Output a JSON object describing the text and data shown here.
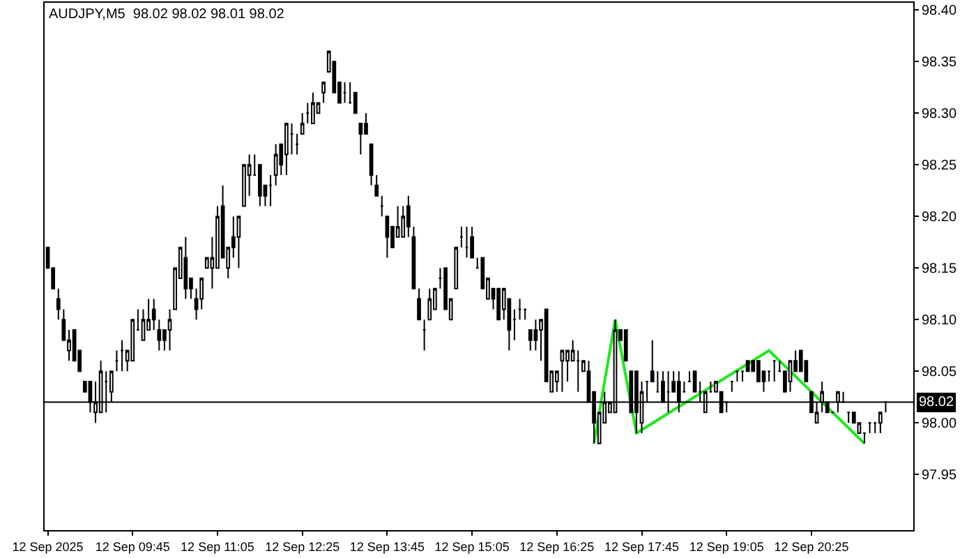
{
  "chart_data": {
    "type": "candlestick",
    "title": "AUDJPY,M5  98.02 98.02 98.01 98.02",
    "x": [
      "2025-09-12T08:25",
      "2025-09-12T08:30",
      "2025-09-12T08:35",
      "2025-09-12T08:40",
      "2025-09-12T08:45",
      "2025-09-12T08:50",
      "2025-09-12T08:55",
      "2025-09-12T09:00",
      "2025-09-12T09:05",
      "2025-09-12T09:10",
      "2025-09-12T09:15",
      "2025-09-12T09:20",
      "2025-09-12T09:25",
      "2025-09-12T09:30",
      "2025-09-12T09:35",
      "2025-09-12T09:40",
      "2025-09-12T09:45",
      "2025-09-12T09:50",
      "2025-09-12T09:55",
      "2025-09-12T10:00",
      "2025-09-12T10:05",
      "2025-09-12T10:10",
      "2025-09-12T10:15",
      "2025-09-12T10:20",
      "2025-09-12T10:25",
      "2025-09-12T10:30",
      "2025-09-12T10:35",
      "2025-09-12T10:40",
      "2025-09-12T10:45",
      "2025-09-12T10:50",
      "2025-09-12T10:55",
      "2025-09-12T11:00",
      "2025-09-12T11:05",
      "2025-09-12T11:10",
      "2025-09-12T11:15",
      "2025-09-12T11:20",
      "2025-09-12T11:25",
      "2025-09-12T11:30",
      "2025-09-12T11:35",
      "2025-09-12T11:40",
      "2025-09-12T11:45",
      "2025-09-12T11:50",
      "2025-09-12T11:55",
      "2025-09-12T12:00",
      "2025-09-12T12:05",
      "2025-09-12T12:10",
      "2025-09-12T12:15",
      "2025-09-12T12:20",
      "2025-09-12T12:25",
      "2025-09-12T12:30",
      "2025-09-12T12:35",
      "2025-09-12T12:40",
      "2025-09-12T12:45",
      "2025-09-12T12:50",
      "2025-09-12T12:55",
      "2025-09-12T13:00",
      "2025-09-12T13:05",
      "2025-09-12T13:10",
      "2025-09-12T13:15",
      "2025-09-12T13:20",
      "2025-09-12T13:25",
      "2025-09-12T13:30",
      "2025-09-12T13:35",
      "2025-09-12T13:40",
      "2025-09-12T13:45",
      "2025-09-12T13:50",
      "2025-09-12T13:55",
      "2025-09-12T14:00",
      "2025-09-12T14:05",
      "2025-09-12T14:10",
      "2025-09-12T14:15",
      "2025-09-12T14:20",
      "2025-09-12T14:25",
      "2025-09-12T14:30",
      "2025-09-12T14:35",
      "2025-09-12T14:40",
      "2025-09-12T14:45",
      "2025-09-12T14:50",
      "2025-09-12T14:55",
      "2025-09-12T15:00",
      "2025-09-12T15:05",
      "2025-09-12T15:10",
      "2025-09-12T15:15",
      "2025-09-12T15:20",
      "2025-09-12T15:25",
      "2025-09-12T15:30",
      "2025-09-12T15:35",
      "2025-09-12T15:40",
      "2025-09-12T15:45",
      "2025-09-12T15:50",
      "2025-09-12T15:55",
      "2025-09-12T16:00",
      "2025-09-12T16:05",
      "2025-09-12T16:10",
      "2025-09-12T16:15",
      "2025-09-12T16:20",
      "2025-09-12T16:25",
      "2025-09-12T16:30",
      "2025-09-12T16:35",
      "2025-09-12T16:40",
      "2025-09-12T16:45",
      "2025-09-12T16:50",
      "2025-09-12T16:55",
      "2025-09-12T17:00",
      "2025-09-12T17:05",
      "2025-09-12T17:10",
      "2025-09-12T17:15",
      "2025-09-12T17:20",
      "2025-09-12T17:25",
      "2025-09-12T17:30",
      "2025-09-12T17:35",
      "2025-09-12T17:40",
      "2025-09-12T17:45",
      "2025-09-12T17:50",
      "2025-09-12T17:55",
      "2025-09-12T18:00",
      "2025-09-12T18:05",
      "2025-09-12T18:10",
      "2025-09-12T18:15",
      "2025-09-12T18:20",
      "2025-09-12T18:25",
      "2025-09-12T18:30",
      "2025-09-12T18:35",
      "2025-09-12T18:40",
      "2025-09-12T18:45",
      "2025-09-12T18:50",
      "2025-09-12T18:55",
      "2025-09-12T19:00",
      "2025-09-12T19:05",
      "2025-09-12T19:10",
      "2025-09-12T19:15",
      "2025-09-12T19:20",
      "2025-09-12T19:25",
      "2025-09-12T19:30",
      "2025-09-12T19:35",
      "2025-09-12T19:40",
      "2025-09-12T19:45",
      "2025-09-12T19:50",
      "2025-09-12T19:55",
      "2025-09-12T20:00",
      "2025-09-12T20:05",
      "2025-09-12T20:10",
      "2025-09-12T20:15",
      "2025-09-12T20:20",
      "2025-09-12T20:25",
      "2025-09-12T20:30",
      "2025-09-12T20:35",
      "2025-09-12T20:40",
      "2025-09-12T20:45",
      "2025-09-12T20:50",
      "2025-09-12T20:55",
      "2025-09-12T21:00",
      "2025-09-12T21:05",
      "2025-09-12T21:10",
      "2025-09-12T21:15",
      "2025-09-12T21:20",
      "2025-09-12T21:25",
      "2025-09-12T21:30",
      "2025-09-12T21:35"
    ],
    "xlim": [
      "2025-09-12T08:22",
      "2025-09-12T22:01"
    ],
    "xticks": [
      {
        "value": "2025-09-12T08:25",
        "label": "12 Sep 2025"
      },
      {
        "value": "2025-09-12T09:45",
        "label": "12 Sep 09:45"
      },
      {
        "value": "2025-09-12T11:05",
        "label": "12 Sep 11:05"
      },
      {
        "value": "2025-09-12T12:25",
        "label": "12 Sep 12:25"
      },
      {
        "value": "2025-09-12T13:45",
        "label": "12 Sep 13:45"
      },
      {
        "value": "2025-09-12T15:05",
        "label": "12 Sep 15:05"
      },
      {
        "value": "2025-09-12T16:25",
        "label": "12 Sep 16:25"
      },
      {
        "value": "2025-09-12T17:45",
        "label": "12 Sep 17:45"
      },
      {
        "value": "2025-09-12T19:05",
        "label": "12 Sep 19:05"
      },
      {
        "value": "2025-09-12T20:25",
        "label": "12 Sep 20:25"
      }
    ],
    "ylim": [
      97.896,
      98.407
    ],
    "yticks": [
      {
        "value": 97.95,
        "label": "97.95"
      },
      {
        "value": 98.0,
        "label": "98.00"
      },
      {
        "value": 98.05,
        "label": "98.05"
      },
      {
        "value": 98.1,
        "label": "98.10"
      },
      {
        "value": 98.15,
        "label": "98.15"
      },
      {
        "value": 98.2,
        "label": "98.20"
      },
      {
        "value": 98.25,
        "label": "98.25"
      },
      {
        "value": 98.3,
        "label": "98.30"
      },
      {
        "value": 98.35,
        "label": "98.35"
      },
      {
        "value": 98.4,
        "label": "98.40"
      }
    ],
    "ref_lines": [
      {
        "axis": "y",
        "value": 98.02,
        "label": "98.02",
        "color": "#000000"
      }
    ],
    "series": [
      {
        "type": "line",
        "color": "#1fe81f",
        "x": [
          "2025-09-12T17:00",
          "2025-09-12T17:20",
          "2025-09-12T17:40",
          "2025-09-12T19:45",
          "2025-09-12T21:15"
        ],
        "values": [
          97.98,
          98.1,
          97.99,
          98.07,
          97.98
        ]
      },
      {
        "type": "candlestick",
        "color": "#000000",
        "ohlc": [
          [
            98.17,
            98.17,
            98.15,
            98.15
          ],
          [
            98.15,
            98.15,
            98.13,
            98.13
          ],
          [
            98.12,
            98.13,
            98.1,
            98.11
          ],
          [
            98.1,
            98.11,
            98.08,
            98.08
          ],
          [
            98.07,
            98.09,
            98.06,
            98.08
          ],
          [
            98.09,
            98.09,
            98.06,
            98.06
          ],
          [
            98.07,
            98.07,
            98.05,
            98.05
          ],
          [
            98.04,
            98.04,
            98.03,
            98.03
          ],
          [
            98.04,
            98.04,
            98.01,
            98.02
          ],
          [
            98.01,
            98.04,
            98.0,
            98.02
          ],
          [
            98.01,
            98.06,
            98.01,
            98.05
          ],
          [
            98.04,
            98.05,
            98.01,
            98.04
          ],
          [
            98.03,
            98.05,
            98.02,
            98.05
          ],
          [
            98.06,
            98.07,
            98.05,
            98.06
          ],
          [
            98.07,
            98.08,
            98.05,
            98.07
          ],
          [
            98.06,
            98.07,
            98.05,
            98.07
          ],
          [
            98.06,
            98.1,
            98.06,
            98.1
          ],
          [
            98.09,
            98.11,
            98.09,
            98.09
          ],
          [
            98.08,
            98.11,
            98.08,
            98.1
          ],
          [
            98.09,
            98.12,
            98.09,
            98.1
          ],
          [
            98.11,
            98.12,
            98.09,
            98.1
          ],
          [
            98.09,
            98.1,
            98.07,
            98.08
          ],
          [
            98.09,
            98.09,
            98.07,
            98.08
          ],
          [
            98.09,
            98.11,
            98.07,
            98.1
          ],
          [
            98.11,
            98.15,
            98.11,
            98.15
          ],
          [
            98.14,
            98.17,
            98.14,
            98.17
          ],
          [
            98.16,
            98.18,
            98.12,
            98.13
          ],
          [
            98.14,
            98.14,
            98.12,
            98.13
          ],
          [
            98.12,
            98.13,
            98.1,
            98.11
          ],
          [
            98.12,
            98.14,
            98.11,
            98.14
          ],
          [
            98.15,
            98.16,
            98.15,
            98.16
          ],
          [
            98.15,
            98.18,
            98.13,
            98.16
          ],
          [
            98.15,
            98.21,
            98.15,
            98.2
          ],
          [
            98.21,
            98.23,
            98.16,
            98.16
          ],
          [
            98.15,
            98.17,
            98.14,
            98.17
          ],
          [
            98.18,
            98.2,
            98.16,
            98.17
          ],
          [
            98.18,
            98.2,
            98.15,
            98.2
          ],
          [
            98.21,
            98.25,
            98.21,
            98.25
          ],
          [
            98.24,
            98.26,
            98.22,
            98.25
          ],
          [
            98.24,
            98.26,
            98.24,
            98.24
          ],
          [
            98.25,
            98.25,
            98.21,
            98.22
          ],
          [
            98.23,
            98.23,
            98.21,
            98.22
          ],
          [
            98.23,
            98.24,
            98.21,
            98.23
          ],
          [
            98.24,
            98.27,
            98.23,
            98.26
          ],
          [
            98.27,
            98.27,
            98.24,
            98.25
          ],
          [
            98.26,
            98.29,
            98.24,
            98.29
          ],
          [
            98.28,
            98.29,
            98.26,
            98.28
          ],
          [
            98.27,
            98.28,
            98.26,
            98.27
          ],
          [
            98.28,
            98.3,
            98.28,
            98.29
          ],
          [
            98.3,
            98.31,
            98.29,
            98.3
          ],
          [
            98.29,
            98.32,
            98.29,
            98.31
          ],
          [
            98.3,
            98.31,
            98.3,
            98.31
          ],
          [
            98.32,
            98.33,
            98.31,
            98.33
          ],
          [
            98.34,
            98.36,
            98.34,
            98.36
          ],
          [
            98.35,
            98.35,
            98.32,
            98.32
          ],
          [
            98.33,
            98.33,
            98.31,
            98.31
          ],
          [
            98.32,
            98.33,
            98.31,
            98.32
          ],
          [
            98.31,
            98.33,
            98.31,
            98.31
          ],
          [
            98.32,
            98.32,
            98.3,
            98.3
          ],
          [
            98.29,
            98.29,
            98.26,
            98.28
          ],
          [
            98.29,
            98.3,
            98.28,
            98.28
          ],
          [
            98.27,
            98.27,
            98.23,
            98.24
          ],
          [
            98.23,
            98.24,
            98.22,
            98.22
          ],
          [
            98.21,
            98.22,
            98.2,
            98.21
          ],
          [
            98.2,
            98.2,
            98.16,
            98.18
          ],
          [
            98.19,
            98.19,
            98.17,
            98.17
          ],
          [
            98.18,
            98.21,
            98.18,
            98.19
          ],
          [
            98.18,
            98.21,
            98.18,
            98.2
          ],
          [
            98.21,
            98.22,
            98.18,
            98.19
          ],
          [
            98.18,
            98.19,
            98.13,
            98.13
          ],
          [
            98.12,
            98.13,
            98.1,
            98.1
          ],
          [
            98.09,
            98.1,
            98.07,
            98.09
          ],
          [
            98.1,
            98.13,
            98.1,
            98.12
          ],
          [
            98.11,
            98.13,
            98.11,
            98.13
          ],
          [
            98.14,
            98.15,
            98.13,
            98.14
          ],
          [
            98.15,
            98.15,
            98.11,
            98.11
          ],
          [
            98.1,
            98.12,
            98.1,
            98.12
          ],
          [
            98.13,
            98.17,
            98.13,
            98.17
          ],
          [
            98.18,
            98.19,
            98.17,
            98.18
          ],
          [
            98.17,
            98.19,
            98.16,
            98.17
          ],
          [
            98.18,
            98.19,
            98.16,
            98.16
          ],
          [
            98.15,
            98.16,
            98.15,
            98.15
          ],
          [
            98.16,
            98.16,
            98.13,
            98.13
          ],
          [
            98.12,
            98.14,
            98.12,
            98.14
          ],
          [
            98.13,
            98.13,
            98.11,
            98.12
          ],
          [
            98.13,
            98.13,
            98.1,
            98.1
          ],
          [
            98.11,
            98.13,
            98.1,
            98.13
          ],
          [
            98.12,
            98.12,
            98.07,
            98.09
          ],
          [
            98.1,
            98.11,
            98.08,
            98.1
          ],
          [
            98.11,
            98.12,
            98.1,
            98.11
          ],
          [
            98.11,
            98.11,
            98.1,
            98.11
          ],
          [
            98.09,
            98.09,
            98.07,
            98.08
          ],
          [
            98.09,
            98.1,
            98.07,
            98.08
          ],
          [
            98.09,
            98.1,
            98.06,
            98.1
          ],
          [
            98.11,
            98.11,
            98.04,
            98.04
          ],
          [
            98.03,
            98.05,
            98.03,
            98.05
          ],
          [
            98.04,
            98.05,
            98.03,
            98.05
          ],
          [
            98.06,
            98.07,
            98.03,
            98.07
          ],
          [
            98.06,
            98.07,
            98.04,
            98.07
          ],
          [
            98.06,
            98.08,
            98.06,
            98.07
          ],
          [
            98.06,
            98.07,
            98.03,
            98.06
          ],
          [
            98.05,
            98.06,
            98.05,
            98.06
          ],
          [
            98.05,
            98.06,
            98.02,
            98.02
          ],
          [
            98.03,
            98.03,
            97.98,
            98.0
          ],
          [
            97.98,
            98.01,
            97.98,
            98.01
          ],
          [
            98.0,
            98.03,
            98.0,
            98.02
          ],
          [
            98.01,
            98.02,
            98.01,
            98.02
          ],
          [
            98.01,
            98.1,
            98.01,
            98.09
          ],
          [
            98.09,
            98.09,
            98.08,
            98.08
          ],
          [
            98.09,
            98.09,
            98.06,
            98.06
          ],
          [
            98.05,
            98.05,
            98.01,
            98.01
          ],
          [
            98.05,
            98.05,
            97.99,
            98.01
          ],
          [
            98.0,
            98.04,
            97.99,
            98.03
          ],
          [
            98.04,
            98.04,
            98.02,
            98.04
          ],
          [
            98.05,
            98.08,
            98.04,
            98.04
          ],
          [
            98.03,
            98.05,
            98.03,
            98.03
          ],
          [
            98.04,
            98.05,
            98.02,
            98.02
          ],
          [
            98.03,
            98.05,
            98.01,
            98.03
          ],
          [
            98.04,
            98.05,
            98.03,
            98.03
          ],
          [
            98.04,
            98.05,
            98.01,
            98.02
          ],
          [
            98.03,
            98.04,
            98.03,
            98.03
          ],
          [
            98.04,
            98.05,
            98.04,
            98.04
          ],
          [
            98.05,
            98.05,
            98.03,
            98.03
          ],
          [
            98.03,
            98.04,
            98.02,
            98.03
          ],
          [
            98.01,
            98.03,
            98.01,
            98.03
          ],
          [
            98.03,
            98.04,
            98.03,
            98.03
          ],
          [
            98.03,
            98.04,
            98.03,
            98.04
          ],
          [
            98.03,
            98.03,
            98.01,
            98.01
          ],
          [
            98.02,
            98.02,
            98.01,
            98.02
          ],
          [
            98.04,
            98.04,
            98.03,
            98.04
          ],
          [
            98.05,
            98.05,
            98.04,
            98.05
          ],
          [
            98.05,
            98.05,
            98.04,
            98.05
          ],
          [
            98.06,
            98.06,
            98.05,
            98.05
          ],
          [
            98.06,
            98.06,
            98.05,
            98.05
          ],
          [
            98.06,
            98.06,
            98.04,
            98.04
          ],
          [
            98.05,
            98.05,
            98.03,
            98.04
          ],
          [
            98.05,
            98.05,
            98.04,
            98.05
          ],
          [
            98.06,
            98.06,
            98.04,
            98.06
          ],
          [
            98.05,
            98.06,
            98.05,
            98.05
          ],
          [
            98.05,
            98.05,
            98.03,
            98.03
          ],
          [
            98.04,
            98.06,
            98.03,
            98.06
          ],
          [
            98.06,
            98.07,
            98.05,
            98.05
          ],
          [
            98.07,
            98.07,
            98.05,
            98.05
          ],
          [
            98.06,
            98.06,
            98.04,
            98.04
          ],
          [
            98.03,
            98.03,
            98.01,
            98.01
          ],
          [
            98.0,
            98.02,
            98.0,
            98.01
          ],
          [
            98.02,
            98.04,
            98.01,
            98.03
          ],
          [
            98.02,
            98.02,
            98.01,
            98.01
          ],
          [
            98.01,
            98.01,
            98.01,
            98.01
          ],
          [
            98.02,
            98.03,
            98.01,
            98.03
          ],
          [
            98.02,
            98.03,
            98.02,
            98.02
          ],
          [
            98.01,
            98.01,
            98.0,
            98.01
          ],
          [
            98.01,
            98.01,
            98.0,
            98.0
          ],
          [
            97.99,
            98.0,
            97.99,
            98.0
          ],
          [
            97.99,
            97.99,
            97.98,
            97.99
          ],
          [
            98.0,
            98.0,
            97.99,
            98.0
          ],
          [
            98.0,
            98.0,
            97.99,
            98.0
          ],
          [
            98.0,
            98.01,
            97.99,
            98.01
          ],
          [
            98.02,
            98.02,
            98.01,
            98.02
          ]
        ]
      }
    ]
  }
}
